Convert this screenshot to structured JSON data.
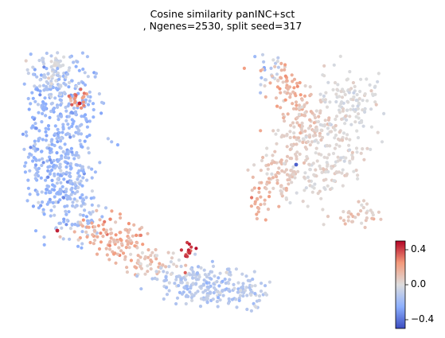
{
  "chart_data": {
    "type": "scatter",
    "title_lines": [
      "Cosine similarity panINC+sct",
      ", Ngenes=2530, split seed=317"
    ],
    "xlabel": "",
    "ylabel": "",
    "axes_visible": false,
    "grid": false,
    "legend": "none",
    "colormap": "coolwarm",
    "color_range": [
      -0.5,
      0.5
    ],
    "colorbar": {
      "placement": "bottom-right",
      "ticks": [
        0.4,
        0.0,
        -0.4
      ],
      "tick_labels": [
        "0.4",
        "0.0",
        "−0.4"
      ]
    },
    "colors": {
      "low": "#3b4cc0",
      "mid": "#dddddd",
      "high": "#b40426"
    },
    "note": "single-cell embedding; each point colored by cosine similarity"
  }
}
